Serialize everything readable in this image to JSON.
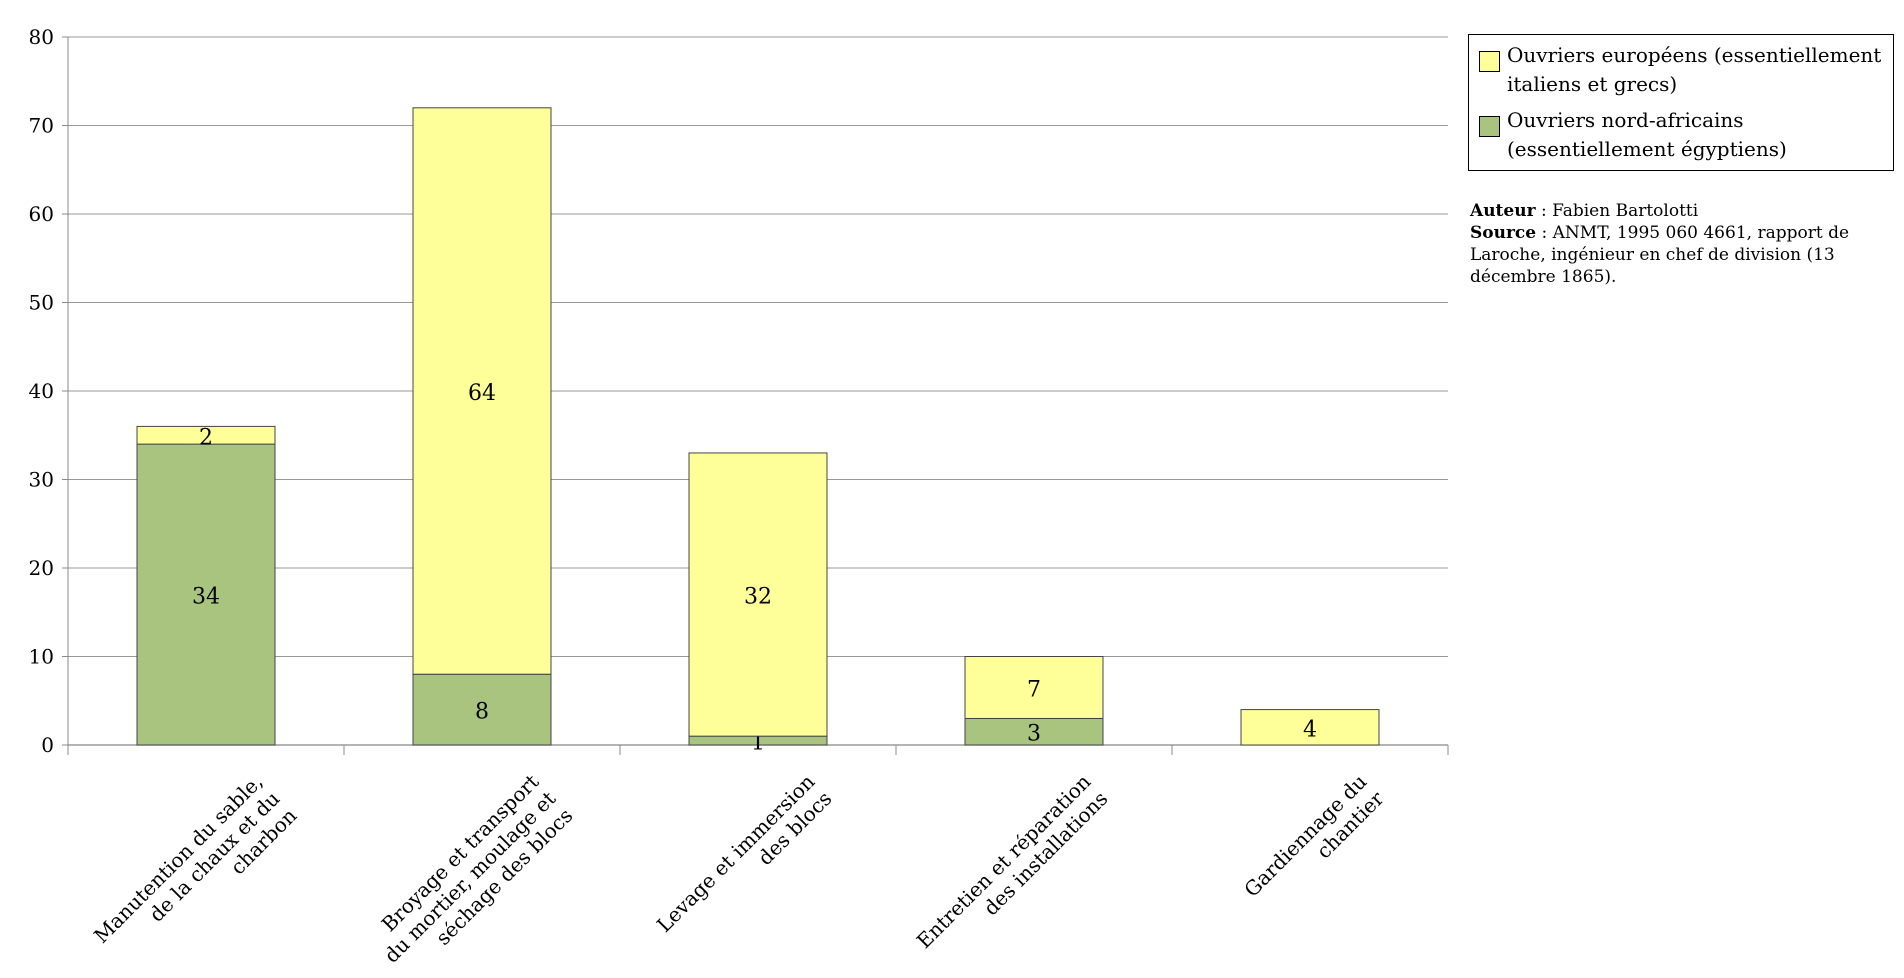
{
  "chart_data": {
    "type": "bar",
    "stacked": true,
    "categories": [
      [
        "Manutention du sable,",
        "de la chaux et du",
        "charbon"
      ],
      [
        "Broyage et transport",
        "du mortier, moulage et",
        "séchage des blocs"
      ],
      [
        "Levage et immersion",
        "des blocs"
      ],
      [
        "Entretien et réparation",
        "des installations"
      ],
      [
        "Gardiennage du",
        "chantier"
      ]
    ],
    "series": [
      {
        "name": "Ouvriers nord-africains (essentiellement égyptiens)",
        "values": [
          34,
          8,
          1,
          3,
          0
        ],
        "color": "#a9c47f"
      },
      {
        "name": "Ouvriers européens (essentiellement italiens et grecs)",
        "values": [
          2,
          64,
          32,
          7,
          4
        ],
        "color": "#ffff99"
      }
    ],
    "ylim": [
      0,
      80
    ],
    "yticks": [
      0,
      10,
      20,
      30,
      40,
      50,
      60,
      70,
      80
    ],
    "grid": true,
    "legend_position": "top-right"
  },
  "legend": {
    "items": [
      {
        "label": "Ouvriers européens (essentiellement italiens et grecs)",
        "color": "#ffff99"
      },
      {
        "label": "Ouvriers nord-africains (essentiellement égyptiens)",
        "color": "#a9c47f"
      }
    ]
  },
  "source": {
    "author_label": "Auteur",
    "author_value": " : Fabien Bartolotti",
    "source_label": "Source",
    "source_value": " : ANMT, 1995 060 4661, rapport de Laroche, ingénieur en chef de division (13 décembre 1865)."
  }
}
